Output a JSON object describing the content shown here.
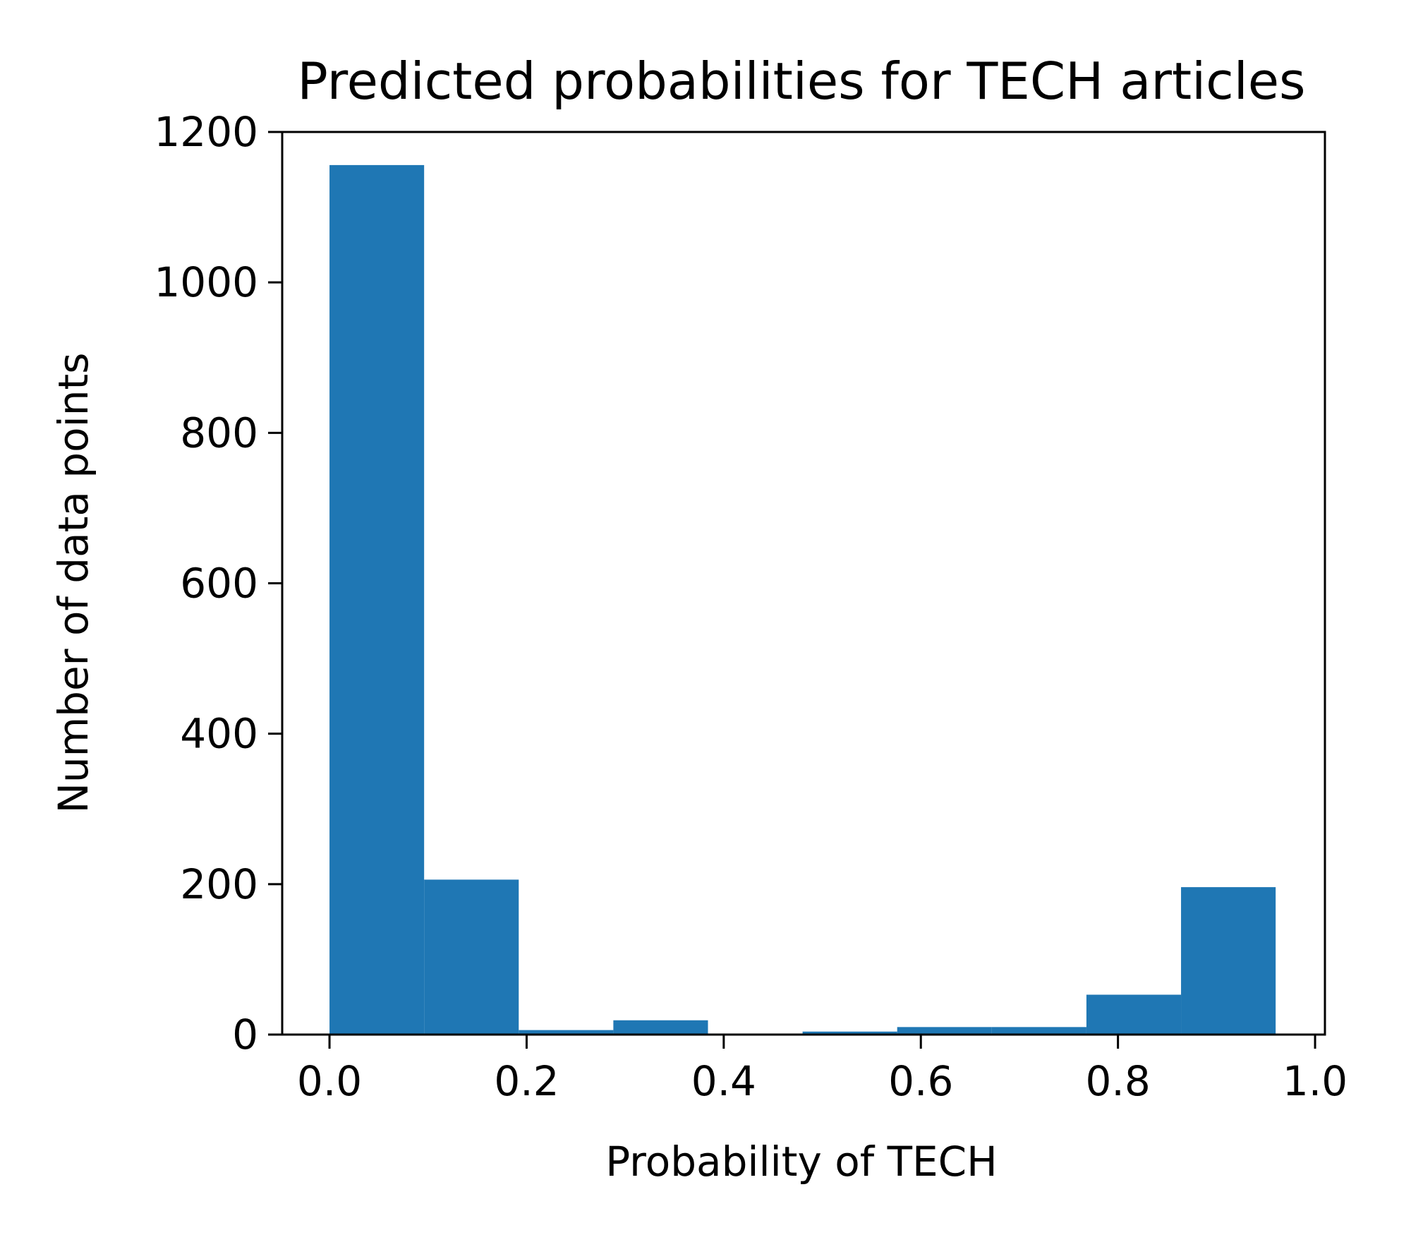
{
  "chart_data": {
    "type": "bar",
    "title": "Predicted probabilities for TECH articles",
    "xlabel": "Probability of TECH",
    "ylabel": "Number of data points",
    "xlim": [
      -0.048,
      1.01
    ],
    "ylim": [
      0,
      1200
    ],
    "x_ticks": [
      0.0,
      0.2,
      0.4,
      0.6,
      0.8,
      1.0
    ],
    "x_tick_labels": [
      "0.0",
      "0.2",
      "0.4",
      "0.6",
      "0.8",
      "1.0"
    ],
    "y_ticks": [
      0,
      200,
      400,
      600,
      800,
      1000,
      1200
    ],
    "y_tick_labels": [
      "0",
      "200",
      "400",
      "600",
      "800",
      "1000",
      "1200"
    ],
    "bins": [
      {
        "x0": 0.0,
        "x1": 0.096,
        "count": 1156
      },
      {
        "x0": 0.096,
        "x1": 0.192,
        "count": 206
      },
      {
        "x0": 0.192,
        "x1": 0.288,
        "count": 6
      },
      {
        "x0": 0.288,
        "x1": 0.384,
        "count": 19
      },
      {
        "x0": 0.384,
        "x1": 0.48,
        "count": 0
      },
      {
        "x0": 0.48,
        "x1": 0.576,
        "count": 4
      },
      {
        "x0": 0.576,
        "x1": 0.672,
        "count": 10
      },
      {
        "x0": 0.672,
        "x1": 0.768,
        "count": 10
      },
      {
        "x0": 0.768,
        "x1": 0.864,
        "count": 53
      },
      {
        "x0": 0.864,
        "x1": 0.96,
        "count": 196
      }
    ],
    "bar_color": "#1f77b4",
    "grid": false
  }
}
